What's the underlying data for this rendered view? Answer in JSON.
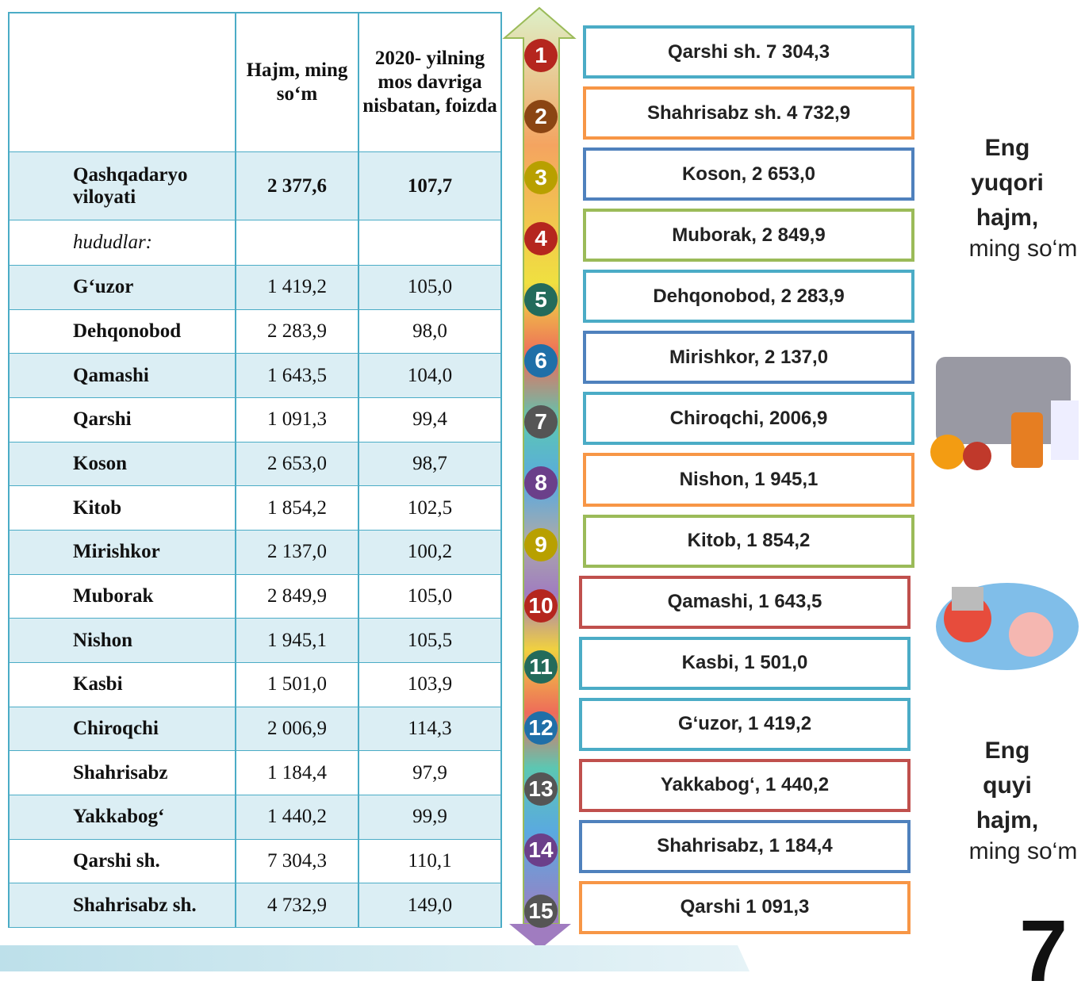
{
  "table": {
    "header": [
      "Hajm, ming so‘m",
      "2020- yilning mos davriga nisbatan, foizda"
    ],
    "total": [
      "Qashqadaryo viloyati",
      "2 377,6",
      "107,7"
    ],
    "section": "hududlar:",
    "rows": [
      [
        "G‘uzor",
        "1 419,2",
        "105,0"
      ],
      [
        "Dehqonobod",
        "2 283,9",
        "98,0"
      ],
      [
        "Qamashi",
        "1 643,5",
        "104,0"
      ],
      [
        "Qarshi",
        "1 091,3",
        "99,4"
      ],
      [
        "Koson",
        "2 653,0",
        "98,7"
      ],
      [
        "Kitob",
        "1 854,2",
        "102,5"
      ],
      [
        "Mirishkor",
        "2 137,0",
        "100,2"
      ],
      [
        "Muborak",
        "2 849,9",
        "105,0"
      ],
      [
        "Nishon",
        "1 945,1",
        "105,5"
      ],
      [
        "Kasbi",
        "1 501,0",
        "103,9"
      ],
      [
        "Chiroqchi",
        "2 006,9",
        "114,3"
      ],
      [
        "Shahrisabz",
        "1 184,4",
        "97,9"
      ],
      [
        "Yakkabog‘",
        "1 440,2",
        "99,9"
      ],
      [
        "Qarshi sh.",
        "7 304,3",
        "110,1"
      ],
      [
        "Shahrisabz sh.",
        "4 732,9",
        "149,0"
      ]
    ]
  },
  "ranking": [
    {
      "number": "1",
      "label": "Qarshi sh. 7 304,3",
      "color": "#4bacc6",
      "dot": "#b5261e"
    },
    {
      "number": "2",
      "label": "Shahrisabz sh. 4 732,9",
      "color": "#f79646",
      "dot": "#8b4513"
    },
    {
      "number": "3",
      "label": "Koson, 2 653,0",
      "color": "#4f81bd",
      "dot": "#b8a000"
    },
    {
      "number": "4",
      "label": "Muborak, 2 849,9",
      "color": "#9bbb59",
      "dot": "#b5261e"
    },
    {
      "number": "5",
      "label": "Dehqonobod, 2 283,9",
      "color": "#4bacc6",
      "dot": "#236b5b"
    },
    {
      "number": "6",
      "label": "Mirishkor, 2 137,0",
      "color": "#4f81bd",
      "dot": "#1f6fa8"
    },
    {
      "number": "7",
      "label": "Chiroqchi, 2006,9",
      "color": "#4bacc6",
      "dot": "#555555"
    },
    {
      "number": "8",
      "label": "Nishon, 1 945,1",
      "color": "#f79646",
      "dot": "#6b3f8a"
    },
    {
      "number": "9",
      "label": "Kitob, 1 854,2",
      "color": "#9bbb59",
      "dot": "#b8a000"
    },
    {
      "number": "10",
      "label": "Qamashi, 1 643,5",
      "color": "#c0504d",
      "dot": "#b5261e"
    },
    {
      "number": "11",
      "label": "Kasbi,  1 501,0",
      "color": "#4bacc6",
      "dot": "#236b5b"
    },
    {
      "number": "12",
      "label": "G‘uzor, 1 419,2",
      "color": "#4bacc6",
      "dot": "#1f6fa8"
    },
    {
      "number": "13",
      "label": "Yakkabog‘, 1 440,2",
      "color": "#c0504d",
      "dot": "#555555"
    },
    {
      "number": "14",
      "label": "Shahrisabz, 1 184,4",
      "color": "#4f81bd",
      "dot": "#6b3f8a"
    },
    {
      "number": "15",
      "label": "Qarshi  1 091,3",
      "color": "#f79646",
      "dot": "#555555"
    }
  ],
  "side": {
    "top": {
      "title": "Eng yuqori hajm,",
      "unit": "ming so‘m"
    },
    "bottom": {
      "title": "Eng quyi hajm,",
      "unit": "ming so‘m"
    },
    "page": "7"
  }
}
